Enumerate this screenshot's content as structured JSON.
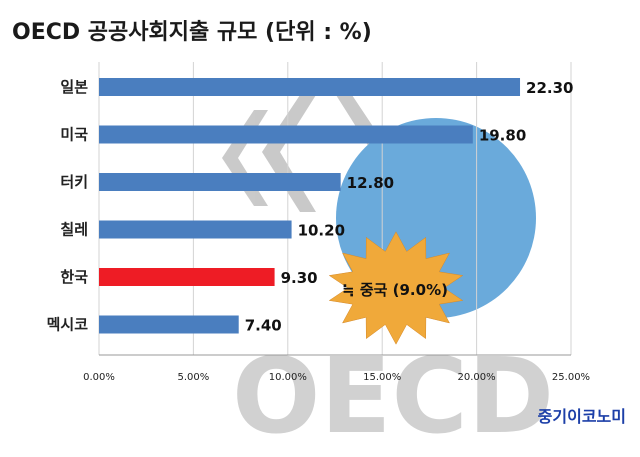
{
  "title": "OECD 공공사회지출 규모 (단위 : %)",
  "chart_data": {
    "type": "bar",
    "orientation": "horizontal",
    "categories": [
      "일본",
      "미국",
      "터키",
      "칠레",
      "한국",
      "멕시코"
    ],
    "values": [
      22.3,
      19.8,
      12.8,
      10.2,
      9.3,
      7.4
    ],
    "value_labels": [
      "22.30",
      "19.80",
      "12.80",
      "10.20",
      "9.30",
      "7.40"
    ],
    "highlight_category": "한국",
    "xlim": [
      0,
      25
    ],
    "x_ticks": [
      0,
      5,
      10,
      15,
      20,
      25
    ],
    "x_tick_labels": [
      "0.00%",
      "5.00%",
      "10.00%",
      "15.00%",
      "20.00%",
      "25.00%"
    ],
    "grid": true,
    "annotation": "≒ 중국 (9.0%)",
    "watermark_text": "OECD",
    "colors": {
      "bar": "#4a7ebf",
      "highlight_bar": "#ee1c25",
      "burst": "#f0a93a",
      "circle": "#6aaadb",
      "grid": "#d3d3d3",
      "watermark": "#bcbcbc"
    }
  },
  "source": "중기이코노미"
}
